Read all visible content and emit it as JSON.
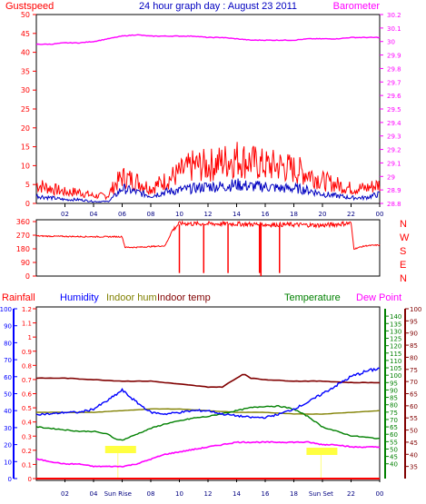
{
  "header": {
    "title": "24 hour graph day : August 23 2011",
    "gust_label": "Gustspeed",
    "baro_label": "Barometer"
  },
  "colors": {
    "gust": "#ff0000",
    "wind": "#0000c0",
    "baro": "#ff00ff",
    "winddir": "#ff0000",
    "rain": "#ff0000",
    "humidity": "#0000ff",
    "indoor_hum": "#808000",
    "indoor_temp": "#800000",
    "temperature": "#008000",
    "dew_point": "#ff00ff",
    "axis_rain": "#0000ff",
    "axis_temp": "#008000",
    "axis_dew": "#800000"
  },
  "bottom_legend": {
    "rainfall": "Rainfall",
    "humidity": "Humidity",
    "indoor_hum": "Indoor hum",
    "indoor_temp": "Indoor temp",
    "temperature": "Temperature",
    "dew_point": "Dew Point"
  },
  "compass": [
    "N",
    "W",
    "S",
    "E",
    "N"
  ],
  "sun": {
    "rise": "Sun Rise",
    "set": "Sun Set"
  },
  "chart_data": [
    {
      "type": "line",
      "x_ticks": [
        "02",
        "04",
        "06",
        "08",
        "10",
        "12",
        "14",
        "16",
        "18",
        "20",
        "22",
        "00"
      ],
      "left_axis": {
        "label": "Gustspeed",
        "ylim": [
          0,
          50
        ],
        "ticks": [
          0,
          5,
          10,
          15,
          20,
          25,
          30,
          35,
          40,
          45,
          50
        ]
      },
      "right_axis": {
        "label": "Barometer",
        "ylim": [
          28.8,
          30.2
        ],
        "ticks": [
          "28.8",
          "28.9",
          "29",
          "29.1",
          "29.2",
          "29.3",
          "29.4",
          "29.5",
          "29.6",
          "29.7",
          "29.8",
          "29.9",
          "30",
          "30.1",
          "30.2"
        ]
      },
      "series": [
        {
          "name": "Gustspeed",
          "axis": "left",
          "x": [
            0,
            1,
            2,
            3,
            4,
            5,
            5.5,
            6,
            7,
            8,
            9,
            10,
            11,
            12,
            13,
            14,
            15,
            16,
            17,
            18,
            19,
            20,
            21,
            22,
            23,
            24
          ],
          "y": [
            5,
            4,
            3,
            3,
            2,
            2,
            5,
            7,
            6,
            4,
            6,
            8,
            10,
            10,
            11,
            12,
            11,
            10,
            10,
            9,
            8,
            6,
            5,
            4,
            4,
            5
          ]
        },
        {
          "x": [
            0,
            1,
            2,
            3,
            4,
            5,
            5.5,
            6,
            7,
            8,
            9,
            10,
            11,
            12,
            13,
            14,
            15,
            16,
            17,
            18,
            19,
            20,
            21,
            22,
            23,
            24
          ],
          "y": [
            2,
            1.5,
            1,
            1,
            0.5,
            0.5,
            2,
            4,
            3,
            2,
            3,
            3.5,
            4,
            4.5,
            4.5,
            5,
            4.5,
            4.5,
            4,
            4,
            3.5,
            2.5,
            2,
            1.5,
            1.5,
            2.5
          ]
        },
        {
          "name": "Barometer",
          "axis": "right",
          "x": [
            0,
            1,
            2,
            3,
            4,
            5,
            6,
            7,
            8,
            9,
            10,
            11,
            12,
            13,
            14,
            15,
            16,
            17,
            18,
            19,
            20,
            21,
            22,
            23,
            24
          ],
          "y": [
            29.98,
            29.98,
            29.99,
            29.99,
            30.0,
            30.02,
            30.04,
            30.05,
            30.04,
            30.04,
            30.04,
            30.04,
            30.03,
            30.03,
            30.02,
            30.01,
            30.01,
            30.01,
            30.01,
            30.02,
            30.02,
            30.02,
            30.03,
            30.03,
            30.03
          ]
        }
      ]
    },
    {
      "type": "line",
      "ylim": [
        0,
        360
      ],
      "y_ticks": [
        0,
        90,
        180,
        270,
        360
      ],
      "series": [
        {
          "x": [
            0,
            2,
            4,
            6,
            6.2,
            7,
            8,
            9,
            9.5,
            10,
            11,
            12,
            14,
            16,
            18,
            20,
            22,
            22.2,
            23,
            24
          ],
          "y": [
            265,
            262,
            260,
            260,
            190,
            190,
            195,
            200,
            300,
            350,
            345,
            345,
            345,
            340,
            340,
            335,
            350,
            180,
            200,
            205
          ]
        }
      ]
    },
    {
      "type": "line",
      "x_ticks": [
        "02",
        "04",
        "06",
        "08",
        "10",
        "12",
        "14",
        "16",
        "18",
        "20",
        "22",
        "00"
      ],
      "axes": {
        "rain_in": {
          "ylim": [
            0,
            1.2
          ],
          "ticks": [
            "0",
            "0.1",
            "0.2",
            "0.3",
            "0.4",
            "0.5",
            "0.6",
            "0.7",
            "0.8",
            "0.9",
            "1",
            "1.1",
            "1.2"
          ]
        },
        "humidity": {
          "ylim": [
            0,
            100
          ],
          "ticks": [
            0,
            10,
            20,
            30,
            40,
            50,
            60,
            70,
            80,
            90,
            100
          ]
        },
        "temperature": {
          "ylim": [
            30,
            145
          ],
          "ticks": [
            40,
            45,
            50,
            55,
            60,
            65,
            70,
            75,
            80,
            85,
            90,
            95,
            100,
            105,
            110,
            115,
            120,
            125,
            130,
            135,
            140
          ]
        },
        "dew_point": {
          "ylim": [
            30,
            100
          ],
          "ticks": [
            35,
            40,
            45,
            50,
            55,
            60,
            65,
            70,
            75,
            80,
            85,
            90,
            95,
            100
          ]
        }
      },
      "series": [
        {
          "name": "Rainfall",
          "axis": "rain_in",
          "x": [
            0,
            24
          ],
          "y": [
            0,
            0
          ]
        },
        {
          "name": "Humidity",
          "axis": "humidity",
          "x": [
            0,
            1,
            2,
            3,
            4,
            5,
            6,
            7,
            8,
            9,
            10,
            11,
            12,
            13,
            14,
            15,
            16,
            17,
            18,
            19,
            20,
            21,
            22,
            23,
            24
          ],
          "y": [
            38,
            38,
            39,
            39,
            41,
            46,
            52,
            45,
            39,
            38,
            39,
            40,
            40,
            38,
            37,
            36,
            36,
            38,
            41,
            45,
            50,
            55,
            60,
            63,
            65
          ]
        },
        {
          "name": "Indoor hum",
          "axis": "humidity",
          "x": [
            0,
            2,
            4,
            6,
            8,
            10,
            12,
            14,
            16,
            18,
            20,
            22,
            24
          ],
          "y": [
            39,
            39,
            39,
            40,
            41,
            41,
            40,
            39,
            39,
            38,
            38,
            39,
            40
          ]
        },
        {
          "name": "Indoor temp",
          "axis": "temperature",
          "x": [
            0,
            2,
            4,
            6,
            8,
            10,
            12,
            13,
            14,
            14.5,
            15,
            16,
            18,
            20,
            22,
            24
          ],
          "y": [
            98,
            98,
            97,
            96,
            96,
            94,
            92,
            92,
            98,
            101,
            98,
            97,
            96,
            96,
            95,
            95
          ]
        },
        {
          "name": "Temperature",
          "axis": "temperature",
          "x": [
            0,
            1,
            2,
            3,
            4,
            5,
            5.5,
            6,
            7,
            8,
            9,
            10,
            11,
            12,
            13,
            14,
            15,
            16,
            17,
            18,
            19,
            20,
            21,
            22,
            23,
            24
          ],
          "y": [
            65,
            64,
            63,
            62,
            62,
            60,
            57,
            56,
            60,
            64,
            67,
            69,
            71,
            72,
            74,
            76,
            78,
            79,
            79,
            77,
            72,
            65,
            62,
            59,
            58,
            57
          ]
        },
        {
          "name": "Dew Point",
          "axis": "dew_point",
          "x": [
            0,
            1,
            2,
            3,
            4,
            5,
            6,
            7,
            8,
            9,
            10,
            11,
            12,
            13,
            14,
            15,
            16,
            17,
            18,
            19,
            20,
            21,
            22,
            23,
            24
          ],
          "y": [
            38,
            37,
            36,
            36,
            35,
            35,
            35,
            36,
            38,
            40,
            41,
            42,
            43,
            44,
            45,
            45,
            45,
            45,
            45,
            45,
            44,
            44,
            43,
            43,
            43
          ]
        }
      ],
      "sunrise_hour": 5.7,
      "sunset_hour": 19.9
    }
  ]
}
